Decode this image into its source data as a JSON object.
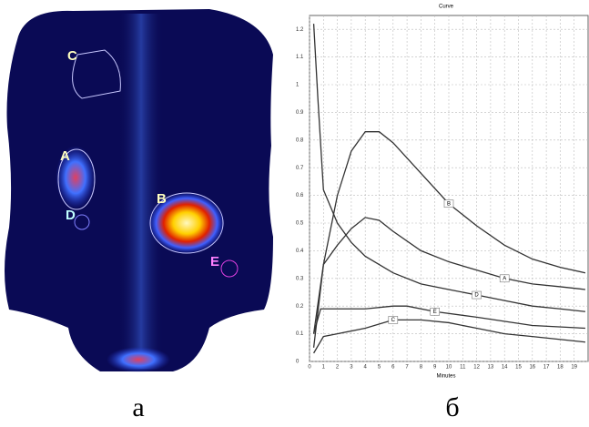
{
  "image_panel": {
    "label": "а",
    "roi_labels": [
      "C",
      "A",
      "D",
      "B",
      "E"
    ]
  },
  "chart_panel_label": "б",
  "chart_data": {
    "type": "line",
    "title": "Curve",
    "x_label": "Minutes",
    "xlim": [
      0,
      20
    ],
    "ylim": [
      0,
      1.25
    ],
    "xticks": [
      0,
      1,
      2,
      3,
      4,
      5,
      6,
      7,
      8,
      9,
      10,
      11,
      12,
      13,
      14,
      15,
      16,
      17,
      18,
      19
    ],
    "yticks": [
      0,
      0.1,
      0.2,
      0.3,
      0.4,
      0.5,
      0.6,
      0.7,
      0.8,
      0.9,
      1,
      1.1,
      1.2
    ],
    "grid": true,
    "series": [
      {
        "name": "D",
        "color": "#333333",
        "x": [
          0.3,
          0.6,
          1,
          2,
          3,
          4,
          6,
          8,
          10,
          12,
          14,
          16,
          18,
          19.8
        ],
        "values": [
          1.22,
          0.95,
          0.62,
          0.5,
          0.43,
          0.38,
          0.32,
          0.28,
          0.26,
          0.24,
          0.22,
          0.2,
          0.19,
          0.18
        ]
      },
      {
        "name": "B",
        "color": "#333333",
        "x": [
          0.3,
          1,
          2,
          3,
          4,
          5,
          6,
          8,
          10,
          12,
          14,
          16,
          18,
          19.8
        ],
        "values": [
          0.05,
          0.35,
          0.6,
          0.76,
          0.83,
          0.83,
          0.79,
          0.68,
          0.57,
          0.49,
          0.42,
          0.37,
          0.34,
          0.32
        ]
      },
      {
        "name": "A",
        "color": "#333333",
        "x": [
          0.3,
          1,
          2,
          3,
          4,
          5,
          6,
          8,
          10,
          12,
          14,
          16,
          18,
          19.8
        ],
        "values": [
          0.1,
          0.35,
          0.42,
          0.48,
          0.52,
          0.51,
          0.47,
          0.4,
          0.36,
          0.33,
          0.3,
          0.28,
          0.27,
          0.26
        ]
      },
      {
        "name": "E",
        "color": "#333333",
        "x": [
          0.3,
          0.8,
          2,
          4,
          6,
          7,
          9,
          12,
          16,
          19.8
        ],
        "values": [
          0.1,
          0.19,
          0.19,
          0.19,
          0.2,
          0.2,
          0.18,
          0.16,
          0.13,
          0.12
        ]
      },
      {
        "name": "C",
        "color": "#333333",
        "x": [
          0.3,
          1,
          2,
          4,
          6,
          8,
          10,
          12,
          14,
          16,
          19.8
        ],
        "values": [
          0.03,
          0.09,
          0.1,
          0.12,
          0.15,
          0.15,
          0.14,
          0.12,
          0.1,
          0.09,
          0.07
        ]
      }
    ]
  }
}
